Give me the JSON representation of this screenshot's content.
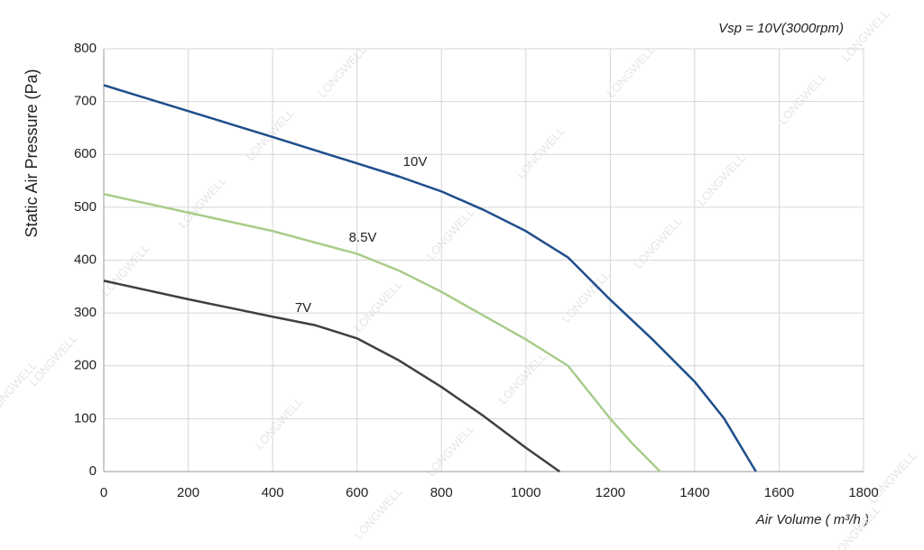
{
  "chart_data": {
    "type": "line",
    "title": "Vsp = 10V(3000rpm)",
    "ylabel": "Static Air Pressure  (Pa)",
    "xlabel": "Air Volume ( m³/h )",
    "watermark": "LONGWELL",
    "xlim": [
      0,
      1800
    ],
    "xticks": [
      0,
      200,
      400,
      600,
      800,
      1000,
      1200,
      1400,
      1600,
      1800
    ],
    "ylim": [
      0,
      800
    ],
    "yticks": [
      0,
      100,
      200,
      300,
      400,
      500,
      600,
      700,
      800
    ],
    "grid": true,
    "series": [
      {
        "name": "10V",
        "color": "#1f4e8c",
        "x": [
          0,
          200,
          400,
          600,
          700,
          800,
          900,
          1000,
          1100,
          1200,
          1300,
          1400,
          1470,
          1500,
          1545
        ],
        "values": [
          731,
          682,
          633,
          583,
          558,
          530,
          495,
          455,
          405,
          325,
          250,
          170,
          100,
          60,
          0
        ]
      },
      {
        "name": "8.5V",
        "color": "#a9cc8a",
        "x": [
          0,
          200,
          400,
          600,
          700,
          800,
          900,
          1000,
          1100,
          1200,
          1250,
          1318
        ],
        "values": [
          525,
          490,
          455,
          412,
          380,
          340,
          295,
          250,
          200,
          100,
          55,
          0
        ]
      },
      {
        "name": "7V",
        "color": "#404040",
        "x": [
          0,
          200,
          400,
          500,
          600,
          700,
          800,
          900,
          1000,
          1080
        ],
        "values": [
          361,
          326,
          293,
          277,
          252,
          210,
          160,
          105,
          45,
          0
        ]
      }
    ]
  }
}
